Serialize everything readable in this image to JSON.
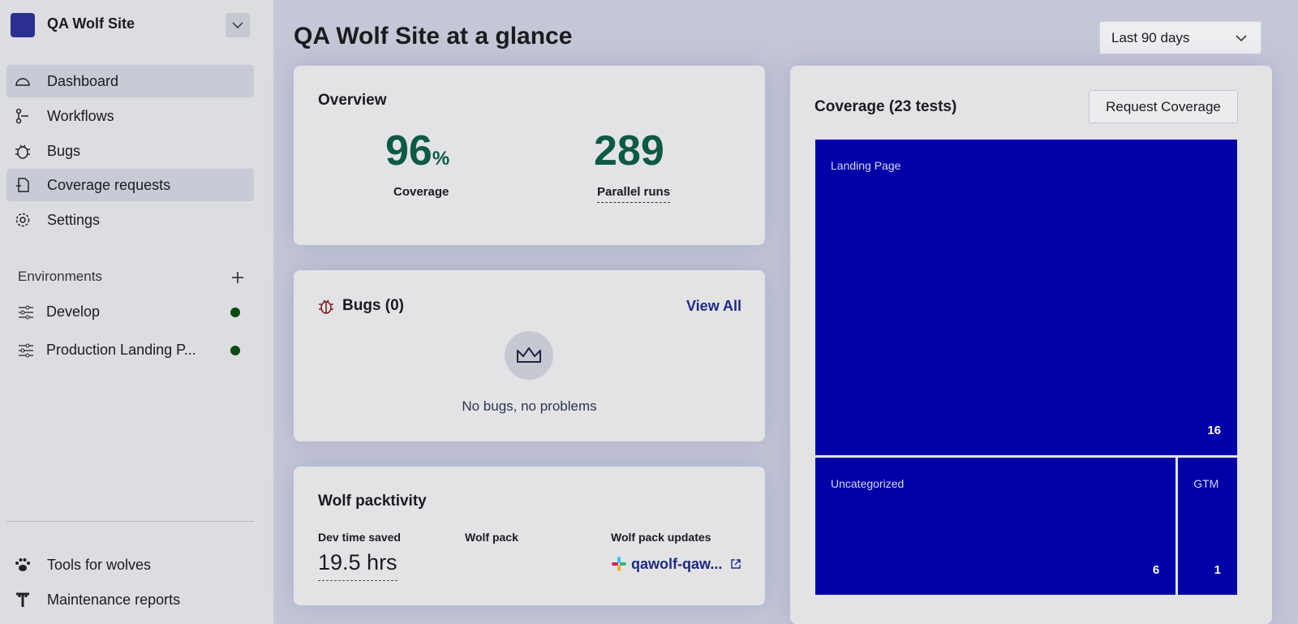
{
  "sidebar": {
    "site_name": "QA Wolf Site",
    "nav": [
      "Dashboard",
      "Workflows",
      "Bugs",
      "Coverage requests",
      "Settings"
    ],
    "environments_title": "Environments",
    "environments": [
      "Develop",
      "Production Landing P..."
    ],
    "footer_nav": [
      "Tools for wolves",
      "Maintenance reports"
    ]
  },
  "header": {
    "title": "QA Wolf Site at a glance",
    "range": "Last 90 days"
  },
  "overview": {
    "title": "Overview",
    "coverage_value": 96,
    "coverage_unit": "%",
    "coverage_label": "Coverage",
    "parallel_runs": 289,
    "parallel_label": "Parallel runs"
  },
  "bugs": {
    "title": "Bugs (0)",
    "link": "View All",
    "empty": "No bugs, no problems"
  },
  "packtivity": {
    "title": "Wolf packtivity",
    "dev_time_label": "Dev time saved",
    "dev_time": "19.5 hrs",
    "wolf_pack_label": "Wolf pack",
    "updates_label": "Wolf pack updates",
    "updates_link": "qawolf-qaw..."
  },
  "coverage": {
    "title": "Coverage (23 tests)",
    "button": "Request Coverage",
    "treemap": [
      {
        "name": "Landing Page",
        "value": 16
      },
      {
        "name": "Uncategorized",
        "value": 6
      },
      {
        "name": "GTM",
        "value": 1
      }
    ]
  }
}
